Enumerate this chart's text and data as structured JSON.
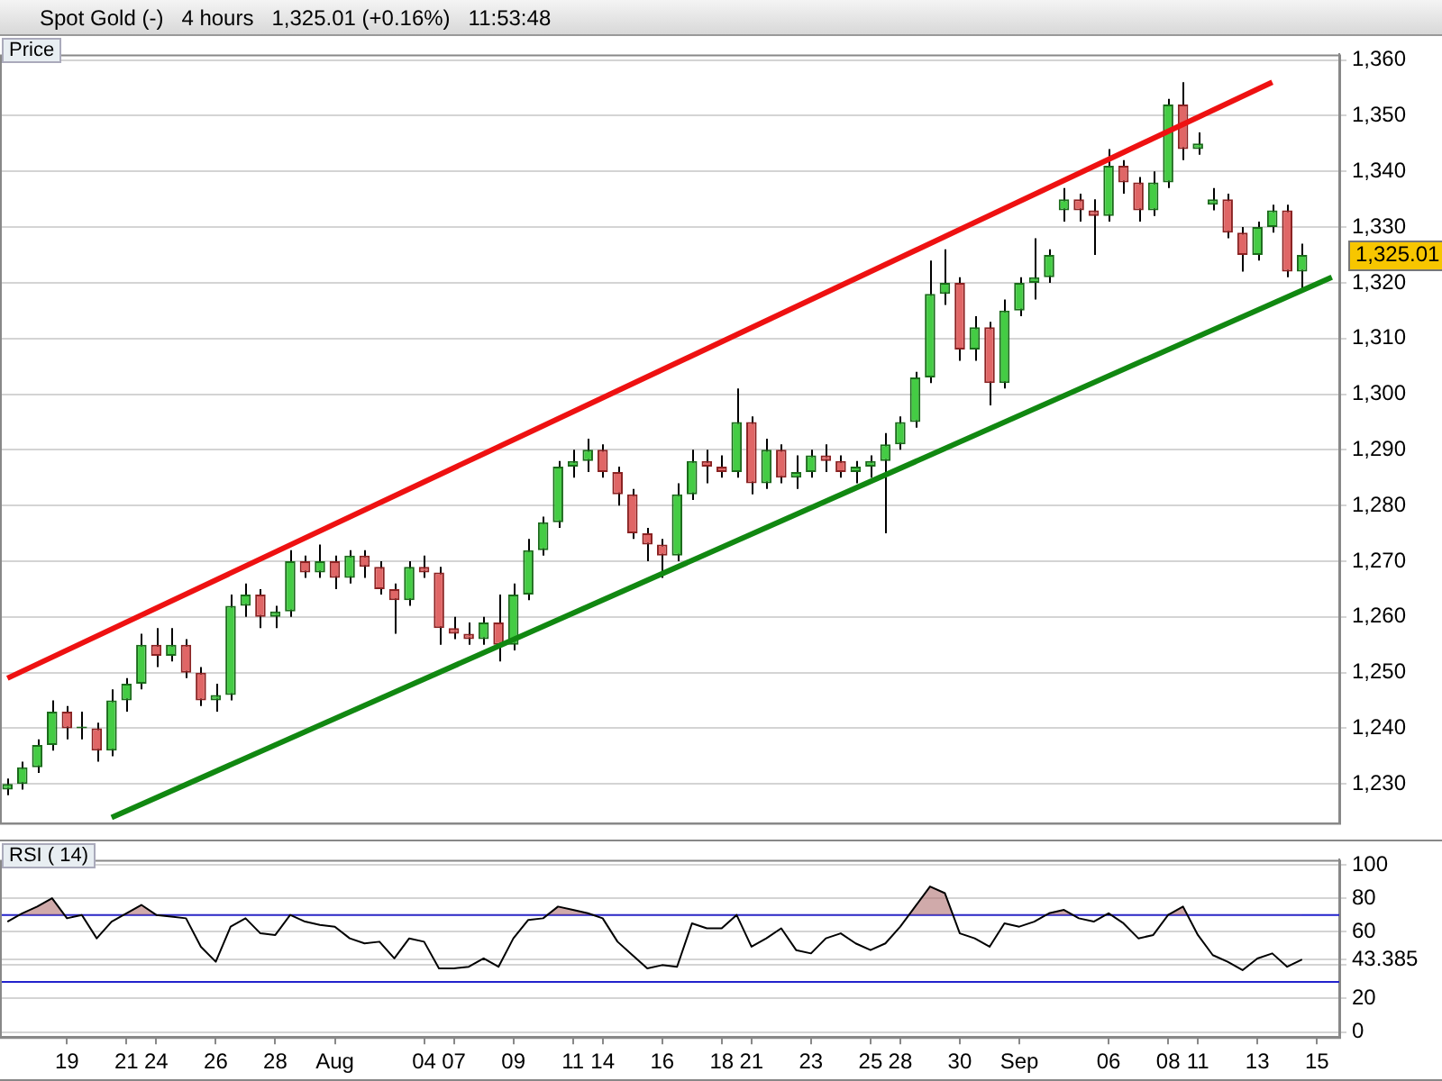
{
  "chart_data": [
    {
      "type": "candlestick",
      "title": "Spot Gold (-)   4 hours   1,325.01 (+0.16%)   11:53:48",
      "ylabel": "Price",
      "ohlc": [
        [
          1229,
          1231,
          1228,
          1230
        ],
        [
          1230,
          1234,
          1229,
          1233
        ],
        [
          1233,
          1238,
          1232,
          1237
        ],
        [
          1237,
          1245,
          1236,
          1243
        ],
        [
          1243,
          1244,
          1238,
          1240
        ],
        [
          1240,
          1243,
          1238,
          1240
        ],
        [
          1240,
          1241,
          1234,
          1236
        ],
        [
          1236,
          1247,
          1235,
          1245
        ],
        [
          1245,
          1249,
          1243,
          1248
        ],
        [
          1248,
          1257,
          1247,
          1255
        ],
        [
          1255,
          1258,
          1251,
          1253
        ],
        [
          1253,
          1258,
          1252,
          1255
        ],
        [
          1255,
          1256,
          1249,
          1250
        ],
        [
          1250,
          1251,
          1244,
          1245
        ],
        [
          1245,
          1248,
          1243,
          1246
        ],
        [
          1246,
          1264,
          1245,
          1262
        ],
        [
          1262,
          1266,
          1260,
          1264
        ],
        [
          1264,
          1265,
          1258,
          1260
        ],
        [
          1260,
          1262,
          1258,
          1261
        ],
        [
          1261,
          1272,
          1260,
          1270
        ],
        [
          1270,
          1271,
          1267,
          1268
        ],
        [
          1268,
          1273,
          1267,
          1270
        ],
        [
          1270,
          1271,
          1265,
          1267
        ],
        [
          1267,
          1272,
          1266,
          1271
        ],
        [
          1271,
          1272,
          1267,
          1269
        ],
        [
          1269,
          1270,
          1264,
          1265
        ],
        [
          1265,
          1266,
          1257,
          1263
        ],
        [
          1263,
          1270,
          1262,
          1269
        ],
        [
          1269,
          1271,
          1267,
          1268
        ],
        [
          1268,
          1269,
          1255,
          1258
        ],
        [
          1258,
          1260,
          1256,
          1257
        ],
        [
          1257,
          1259,
          1255,
          1256
        ],
        [
          1256,
          1260,
          1255,
          1259
        ],
        [
          1259,
          1264,
          1252,
          1255
        ],
        [
          1255,
          1266,
          1254,
          1264
        ],
        [
          1264,
          1274,
          1263,
          1272
        ],
        [
          1272,
          1278,
          1271,
          1277
        ],
        [
          1277,
          1288,
          1276,
          1287
        ],
        [
          1287,
          1290,
          1285,
          1288
        ],
        [
          1288,
          1292,
          1286,
          1290
        ],
        [
          1290,
          1291,
          1285,
          1286
        ],
        [
          1286,
          1287,
          1280,
          1282
        ],
        [
          1282,
          1283,
          1274,
          1275
        ],
        [
          1275,
          1276,
          1270,
          1273
        ],
        [
          1273,
          1274,
          1267,
          1271
        ],
        [
          1271,
          1284,
          1270,
          1282
        ],
        [
          1282,
          1290,
          1281,
          1288
        ],
        [
          1288,
          1290,
          1284,
          1287
        ],
        [
          1287,
          1289,
          1285,
          1286
        ],
        [
          1286,
          1301,
          1285,
          1295
        ],
        [
          1295,
          1296,
          1282,
          1284
        ],
        [
          1284,
          1292,
          1283,
          1290
        ],
        [
          1290,
          1291,
          1284,
          1285
        ],
        [
          1285,
          1289,
          1283,
          1286
        ],
        [
          1286,
          1290,
          1285,
          1289
        ],
        [
          1289,
          1291,
          1286,
          1288
        ],
        [
          1288,
          1289,
          1285,
          1286
        ],
        [
          1286,
          1288,
          1284,
          1287
        ],
        [
          1287,
          1289,
          1285,
          1288
        ],
        [
          1288,
          1293,
          1275,
          1291
        ],
        [
          1291,
          1296,
          1290,
          1295
        ],
        [
          1295,
          1304,
          1294,
          1303
        ],
        [
          1303,
          1324,
          1302,
          1318
        ],
        [
          1318,
          1326,
          1316,
          1320
        ],
        [
          1320,
          1321,
          1306,
          1308
        ],
        [
          1308,
          1314,
          1306,
          1312
        ],
        [
          1312,
          1313,
          1298,
          1302
        ],
        [
          1302,
          1317,
          1301,
          1315
        ],
        [
          1315,
          1321,
          1314,
          1320
        ],
        [
          1320,
          1328,
          1317,
          1321
        ],
        [
          1321,
          1326,
          1320,
          1325
        ],
        [
          1333,
          1337,
          1331,
          1335
        ],
        [
          1335,
          1336,
          1331,
          1333
        ],
        [
          1333,
          1335,
          1325,
          1332
        ],
        [
          1332,
          1344,
          1331,
          1341
        ],
        [
          1341,
          1342,
          1336,
          1338
        ],
        [
          1338,
          1339,
          1331,
          1333
        ],
        [
          1333,
          1340,
          1332,
          1338
        ],
        [
          1338,
          1353,
          1337,
          1352
        ],
        [
          1352,
          1356,
          1342,
          1344
        ],
        [
          1344,
          1347,
          1343,
          1345
        ],
        [
          1334,
          1337,
          1333,
          1335
        ],
        [
          1335,
          1336,
          1328,
          1329
        ],
        [
          1329,
          1330,
          1322,
          1325
        ],
        [
          1325,
          1331,
          1324,
          1330
        ],
        [
          1330,
          1334,
          1329,
          1333
        ],
        [
          1333,
          1334,
          1321,
          1322
        ],
        [
          1322,
          1327,
          1319,
          1325.01
        ],
        null,
        null
      ],
      "series": [
        {
          "type": "line",
          "color": "#ee1111",
          "values": [
            1249,
            null,
            null,
            null,
            null,
            null,
            null,
            null,
            null,
            null,
            null,
            null,
            null,
            null,
            null,
            null,
            null,
            null,
            null,
            null,
            null,
            null,
            null,
            null,
            null,
            null,
            null,
            null,
            null,
            null,
            null,
            null,
            null,
            null,
            null,
            null,
            null,
            null,
            null,
            null,
            null,
            null,
            null,
            null,
            null,
            null,
            null,
            null,
            null,
            null,
            null,
            null,
            null,
            null,
            null,
            null,
            null,
            null,
            null,
            null,
            null,
            null,
            null,
            null,
            null,
            null,
            null,
            null,
            null,
            null,
            null,
            null,
            null,
            null,
            null,
            null,
            null,
            null,
            null,
            null,
            null,
            null,
            null,
            null,
            null,
            1356,
            null,
            null,
            null,
            null
          ]
        },
        {
          "type": "line",
          "color": "#118811",
          "values": [
            null,
            null,
            null,
            null,
            null,
            null,
            null,
            1224,
            null,
            null,
            null,
            null,
            null,
            null,
            null,
            null,
            null,
            null,
            null,
            null,
            null,
            null,
            null,
            null,
            null,
            null,
            null,
            null,
            null,
            null,
            null,
            null,
            null,
            null,
            null,
            null,
            null,
            null,
            null,
            null,
            null,
            null,
            null,
            null,
            null,
            null,
            null,
            null,
            null,
            null,
            null,
            null,
            null,
            null,
            null,
            null,
            null,
            null,
            null,
            null,
            null,
            null,
            null,
            null,
            null,
            null,
            null,
            null,
            null,
            null,
            null,
            null,
            null,
            null,
            null,
            null,
            null,
            null,
            null,
            null,
            null,
            null,
            null,
            null,
            null,
            null,
            null,
            null,
            null,
            1321
          ]
        }
      ],
      "ylim": [
        1223,
        1361
      ],
      "yticks": [
        {
          "value": 1230,
          "label": "1,230"
        },
        {
          "value": 1240,
          "label": "1,240"
        },
        {
          "value": 1250,
          "label": "1,250"
        },
        {
          "value": 1260,
          "label": "1,260"
        },
        {
          "value": 1270,
          "label": "1,270"
        },
        {
          "value": 1280,
          "label": "1,280"
        },
        {
          "value": 1290,
          "label": "1,290"
        },
        {
          "value": 1300,
          "label": "1,300"
        },
        {
          "value": 1310,
          "label": "1,310"
        },
        {
          "value": 1320,
          "label": "1,320"
        },
        {
          "value": 1330,
          "label": "1,330"
        },
        {
          "value": 1340,
          "label": "1,340"
        },
        {
          "value": 1350,
          "label": "1,350"
        },
        {
          "value": 1360,
          "label": "1,360"
        }
      ],
      "grid": "y",
      "tick_labels": "y",
      "annotations": [
        "1,325.01"
      ]
    },
    {
      "type": "line",
      "ylabel": "RSI ( 14)",
      "categories": [
        null,
        null,
        null,
        null,
        "19",
        null,
        null,
        null,
        "21",
        null,
        "24",
        null,
        null,
        null,
        "26",
        null,
        null,
        null,
        "28",
        null,
        null,
        null,
        "Aug",
        null,
        null,
        null,
        null,
        null,
        "04",
        null,
        "07",
        null,
        null,
        null,
        "09",
        null,
        null,
        null,
        "11",
        null,
        "14",
        null,
        null,
        null,
        "16",
        null,
        null,
        null,
        "18",
        null,
        "21",
        null,
        null,
        null,
        "23",
        null,
        null,
        null,
        "25",
        null,
        "28",
        null,
        null,
        null,
        "30",
        null,
        null,
        null,
        "Sep",
        null,
        null,
        null,
        null,
        null,
        "06",
        null,
        null,
        null,
        "08",
        null,
        "11",
        null,
        null,
        null,
        "13",
        null,
        null,
        null,
        "15",
        null
      ],
      "series": [
        {
          "color": "#000000",
          "values": [
            66,
            71,
            75,
            80,
            68,
            70,
            56,
            66,
            71,
            76,
            70,
            69,
            68,
            51,
            42,
            63,
            68,
            59,
            58,
            70,
            66,
            64,
            63,
            56,
            53,
            54,
            44,
            56,
            54,
            38,
            38,
            39,
            44,
            39,
            56,
            67,
            68,
            75,
            73,
            71,
            68,
            54,
            46,
            38,
            40,
            39,
            65,
            62,
            62,
            70,
            51,
            56,
            62,
            49,
            47,
            56,
            59,
            53,
            49,
            53,
            63,
            75,
            87,
            83,
            59,
            56,
            51,
            65,
            63,
            66,
            71,
            73,
            68,
            66,
            71,
            65,
            56,
            58,
            70,
            75,
            58,
            46,
            42,
            37,
            44,
            47,
            39,
            43.385,
            null,
            null
          ]
        }
      ],
      "ylim": [
        -3,
        103
      ],
      "yticks": [
        0,
        20,
        {
          "value": 40,
          "label": null
        },
        {
          "value": 43.385,
          "label": "43.385"
        },
        60,
        80,
        100
      ],
      "grid": "y",
      "ref_lines": [
        {
          "axis": "y",
          "value": 70,
          "color": "#2222cc"
        },
        {
          "axis": "y",
          "value": 30,
          "color": "#2222cc"
        }
      ],
      "legend": false
    }
  ]
}
